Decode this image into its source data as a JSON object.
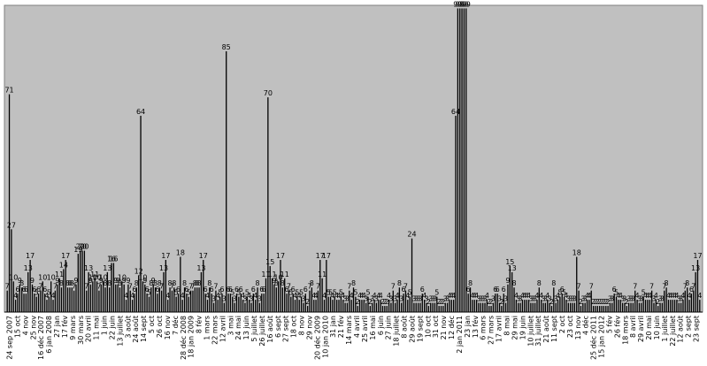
{
  "chart_data": {
    "type": "bar",
    "title": "",
    "xlabel": "",
    "ylabel": "",
    "ylim": [
      0,
      100
    ],
    "grid": false,
    "legend": "none",
    "colors": {
      "plot_bg": "#c0c0c0",
      "bar": "#000000",
      "frame": "#808080"
    },
    "x_tick_labels": [
      "24 sep 2007",
      "15 oct",
      "4 nov",
      "25 nov",
      "16 déc 2007",
      "6 jan 2008",
      "27 jan",
      "17 fév",
      "9 mars",
      "30 mars",
      "20 avril",
      "11 mai",
      "1 juin",
      "22 juin",
      "13 juillet",
      "3 août",
      "24 août",
      "14 sept",
      "5 oct",
      "26 oct",
      "16 nov",
      "7 déc",
      "28 déc 2008",
      "18 jan 2009",
      "8 fév",
      "1 mars",
      "22 mars",
      "12 avril",
      "3 mai",
      "24 mai",
      "13 juin",
      "5 juillet",
      "26 juillet",
      "16 août",
      "6 sept",
      "27 sept",
      "18 oct",
      "8 nov",
      "29 nov",
      "20 déc 2009",
      "10 jan 2010",
      "31 jan",
      "21 fév",
      "14 mars",
      "4 avril",
      "25 avril",
      "16 mai",
      "6 juin",
      "27 juin",
      "18 juillet",
      "8 août",
      "29 août",
      "19 sept",
      "10 oct",
      "31 oct",
      "21 nov",
      "12 déc",
      "2 jan 2011",
      "23 jan",
      "13 fév",
      "6 mars",
      "27 mars",
      "17 avril",
      "8 mai",
      "29 mai",
      "19 juin",
      "10 juillet",
      "31 juillet",
      "21 août",
      "11 sept",
      "2 oct",
      "23 oct",
      "13 nov",
      "4 déc",
      "25 déc 2011",
      "15 jan 2012",
      "5 fév",
      "26 fév",
      "18 mars",
      "8 avril",
      "29 avril",
      "20 mai",
      "10 juin",
      "1 juillet",
      "22 juillet",
      "12 août",
      "2 sept",
      "23 sept"
    ],
    "values": [
      7,
      71,
      27,
      10,
      4,
      6,
      9,
      8,
      6,
      6,
      13,
      17,
      9,
      6,
      5,
      6,
      7,
      10,
      6,
      4,
      5,
      10,
      4,
      7,
      9,
      11,
      8,
      14,
      17,
      8,
      8,
      8,
      7,
      9,
      19,
      20,
      20,
      20,
      7,
      13,
      9,
      10,
      11,
      10,
      7,
      9,
      10,
      8,
      13,
      8,
      16,
      16,
      9,
      9,
      8,
      10,
      9,
      4,
      9,
      7,
      4,
      6,
      8,
      12,
      64,
      10,
      9,
      6,
      5,
      8,
      9,
      8,
      6,
      8,
      7,
      13,
      17,
      4,
      8,
      7,
      8,
      5,
      6,
      18,
      4,
      8,
      6,
      5,
      7,
      7,
      8,
      8,
      8,
      13,
      17,
      6,
      4,
      8,
      6,
      3,
      7,
      4,
      5,
      6,
      3,
      85,
      6,
      6,
      5,
      3,
      6,
      5,
      6,
      4,
      3,
      5,
      4,
      3,
      6,
      4,
      8,
      3,
      6,
      6,
      11,
      70,
      15,
      11,
      9,
      8,
      10,
      17,
      8,
      11,
      6,
      7,
      5,
      6,
      4,
      5,
      4,
      5,
      3,
      6,
      2,
      7,
      8,
      4,
      4,
      7,
      17,
      11,
      4,
      17,
      5,
      5,
      4,
      5,
      4,
      4,
      5,
      4,
      3,
      3,
      7,
      4,
      8,
      5,
      2,
      4,
      4,
      4,
      3,
      5,
      2,
      3,
      4,
      3,
      4,
      4,
      2,
      2,
      2,
      4,
      3,
      7,
      3,
      4,
      8,
      3,
      6,
      7,
      4,
      5,
      24,
      3,
      3,
      3,
      3,
      6,
      4,
      3,
      2,
      3,
      3,
      3,
      5,
      2,
      2,
      2,
      3,
      3,
      4,
      4,
      4,
      64,
      99,
      99,
      99,
      99,
      99,
      6,
      8,
      4,
      4,
      4,
      3,
      3,
      3,
      3,
      4,
      2,
      2,
      3,
      6,
      6,
      3,
      2,
      6,
      3,
      9,
      15,
      13,
      8,
      4,
      3,
      3,
      4,
      4,
      4,
      4,
      3,
      3,
      3,
      4,
      8,
      4,
      3,
      3,
      4,
      3,
      2,
      8,
      3,
      4,
      5,
      6,
      5,
      4,
      3,
      3,
      3,
      3,
      18,
      7,
      2,
      3,
      3,
      4,
      4,
      7,
      2,
      2,
      2,
      2,
      2,
      2,
      2,
      2,
      3,
      3,
      6,
      5,
      4,
      4,
      3,
      3,
      2,
      3,
      3,
      3,
      7,
      4,
      3,
      3,
      5,
      4,
      4,
      4,
      7,
      3,
      4,
      2,
      3,
      3,
      7,
      8,
      4,
      4,
      4,
      4,
      4,
      3,
      3,
      4,
      7,
      8,
      4,
      6,
      7,
      13,
      17,
      4
    ]
  }
}
